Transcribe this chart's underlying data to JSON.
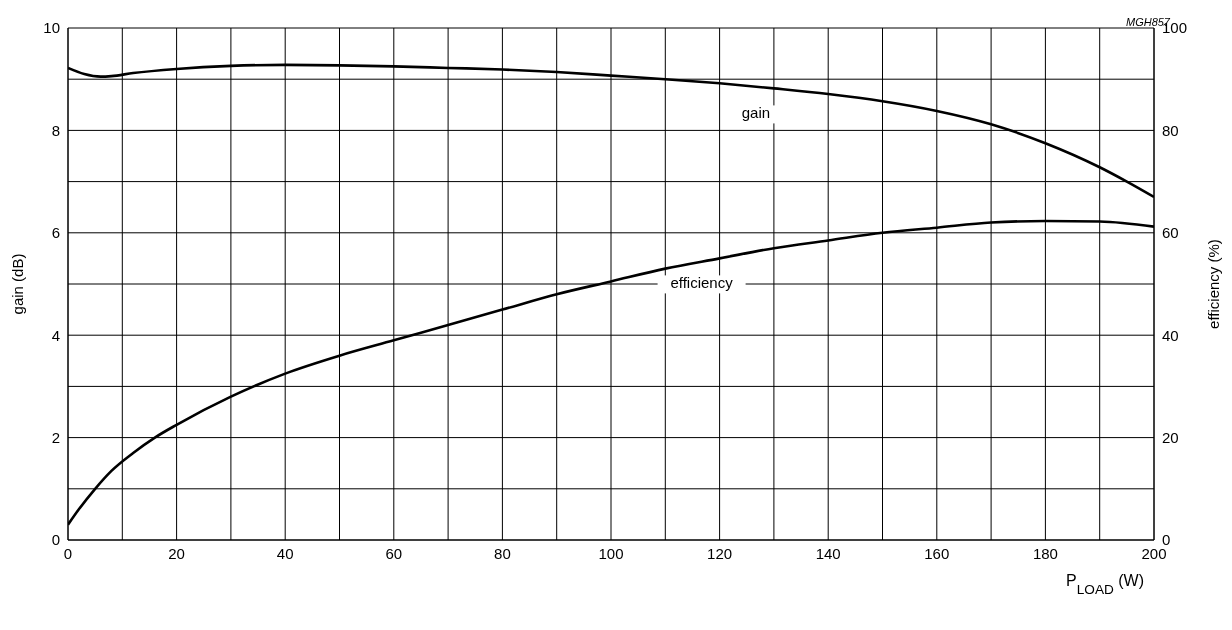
{
  "chart_data": {
    "type": "line",
    "xlabel": "P$_{LOAD}$ (W)",
    "ylabel": "gain (dB)",
    "y2label": "efficiency (%)",
    "annotations": [
      "MGH857"
    ],
    "xlim": [
      0,
      200
    ],
    "xticks": [
      0,
      {
        "value": 10,
        "label": null
      },
      20,
      {
        "value": 30,
        "label": null
      },
      40,
      {
        "value": 50,
        "label": null
      },
      60,
      {
        "value": 70,
        "label": null
      },
      80,
      {
        "value": 90,
        "label": null
      },
      100,
      {
        "value": 110,
        "label": null
      },
      120,
      {
        "value": 130,
        "label": null
      },
      140,
      {
        "value": 150,
        "label": null
      },
      160,
      {
        "value": 170,
        "label": null
      },
      180,
      {
        "value": 190,
        "label": null
      },
      200
    ],
    "ylim": [
      0,
      10
    ],
    "yticks": [
      0,
      {
        "value": 1,
        "label": null
      },
      2,
      {
        "value": 3,
        "label": null
      },
      4,
      {
        "value": 5,
        "label": null
      },
      6,
      {
        "value": 7,
        "label": null
      },
      8,
      {
        "value": 9,
        "label": null
      },
      10
    ],
    "y2lim": [
      0,
      100
    ],
    "y2ticks": [
      0,
      20,
      40,
      60,
      80,
      100
    ],
    "grid": true,
    "series": [
      {
        "name": "gain",
        "color": "#000000",
        "x": [
          0,
          3,
          6,
          8,
          12,
          20,
          30,
          40,
          50,
          60,
          70,
          80,
          90,
          100,
          110,
          120,
          130,
          140,
          150,
          160,
          170,
          180,
          190,
          195,
          200
        ],
        "values": [
          9.22,
          9.1,
          9.05,
          9.06,
          9.12,
          9.2,
          9.26,
          9.28,
          9.27,
          9.25,
          9.22,
          9.19,
          9.14,
          9.07,
          9.0,
          8.92,
          8.82,
          8.71,
          8.57,
          8.38,
          8.12,
          7.75,
          7.28,
          7.0,
          6.7
        ]
      },
      {
        "name": "efficiency",
        "color": "#000000",
        "axis": "y2",
        "x": [
          0,
          2,
          5,
          8,
          12,
          16,
          20,
          30,
          40,
          50,
          60,
          70,
          80,
          90,
          100,
          110,
          120,
          130,
          140,
          150,
          160,
          170,
          180,
          190,
          200
        ],
        "values": [
          3,
          6,
          10,
          13.5,
          17,
          20,
          22.5,
          28,
          32.5,
          36,
          39,
          42,
          45,
          48,
          50.5,
          53,
          55,
          57,
          58.5,
          60,
          61,
          62,
          62.3,
          62.2,
          61.2
        ]
      }
    ]
  }
}
